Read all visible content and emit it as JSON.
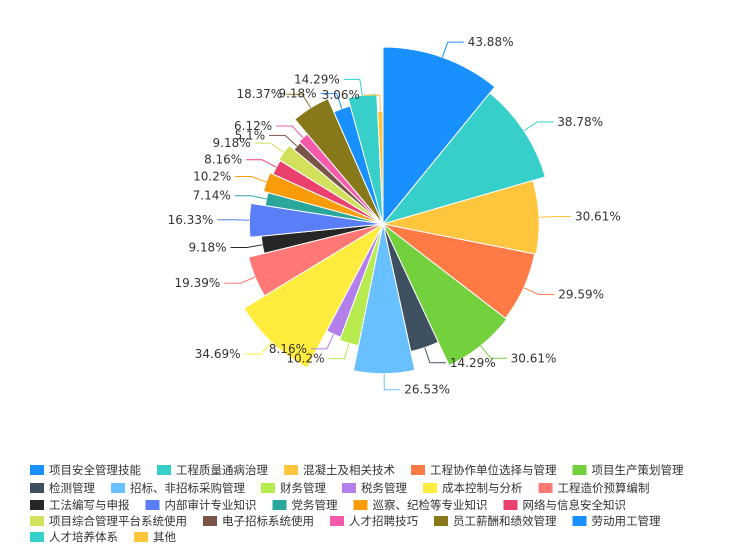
{
  "chart_data": {
    "type": "pie",
    "title": "",
    "legend_position": "bottom",
    "slices": [
      {
        "name": "项目安全管理技能",
        "value": 43.88,
        "label": "43.88%",
        "color": "#1890ff"
      },
      {
        "name": "工程质量通病治理",
        "value": 38.78,
        "label": "38.78%",
        "color": "#36cfc9"
      },
      {
        "name": "混凝土及相关技术",
        "value": 30.61,
        "label": "30.61%",
        "color": "#ffc53d"
      },
      {
        "name": "工程协作单位选择与管理",
        "value": 29.59,
        "label": "29.59%",
        "color": "#ff7a45"
      },
      {
        "name": "项目生产策划管理",
        "value": 30.61,
        "label": "30.61%",
        "color": "#73d13d"
      },
      {
        "name": "检测管理",
        "value": 14.29,
        "label": "14.29%",
        "color": "#3e5060"
      },
      {
        "name": "招标、非招标采购管理",
        "value": 26.53,
        "label": "26.53%",
        "color": "#69c0ff"
      },
      {
        "name": "财务管理",
        "value": 10.2,
        "label": "10.2%",
        "color": "#b7eb4f"
      },
      {
        "name": "税务管理",
        "value": 8.16,
        "label": "8.16%",
        "color": "#b37feb"
      },
      {
        "name": "成本控制与分析",
        "value": 34.69,
        "label": "34.69%",
        "color": "#ffec3d"
      },
      {
        "name": "工程造价预算编制",
        "value": 19.39,
        "label": "19.39%",
        "color": "#ff7875"
      },
      {
        "name": "工法编写与申报",
        "value": 9.18,
        "label": "9.18%",
        "color": "#262626"
      },
      {
        "name": "内部审计专业知识",
        "value": 16.33,
        "label": "16.33%",
        "color": "#597ef7"
      },
      {
        "name": "党务管理",
        "value": 7.14,
        "label": "7.14%",
        "color": "#2ba69a"
      },
      {
        "name": "巡察、纪检等专业知识",
        "value": 10.2,
        "label": "10.2%",
        "color": "#fa9c0a"
      },
      {
        "name": "网络与信息安全知识",
        "value": 8.16,
        "label": "8.16%",
        "color": "#eb3f6e"
      },
      {
        "name": "项目综合管理平台系统使用",
        "value": 9.18,
        "label": "9.18%",
        "color": "#d3e05c"
      },
      {
        "name": "电子招标系统使用",
        "value": 5.1,
        "label": "5.1%",
        "color": "#7a5448"
      },
      {
        "name": "人才招聘技巧",
        "value": 6.12,
        "label": "6.12%",
        "color": "#f759ab"
      },
      {
        "name": "员工薪酬和绩效管理",
        "value": 18.37,
        "label": "18.37%",
        "color": "#877819"
      },
      {
        "name": "劳动用工管理",
        "value": 9.18,
        "label": "9.18%",
        "color": "#1890ff"
      },
      {
        "name": "人才培养体系",
        "value": 14.29,
        "label": "14.29%",
        "color": "#36cfc9"
      },
      {
        "name": "其他",
        "value": 3.06,
        "label": "3.06%",
        "color": "#ffc53d"
      }
    ]
  }
}
